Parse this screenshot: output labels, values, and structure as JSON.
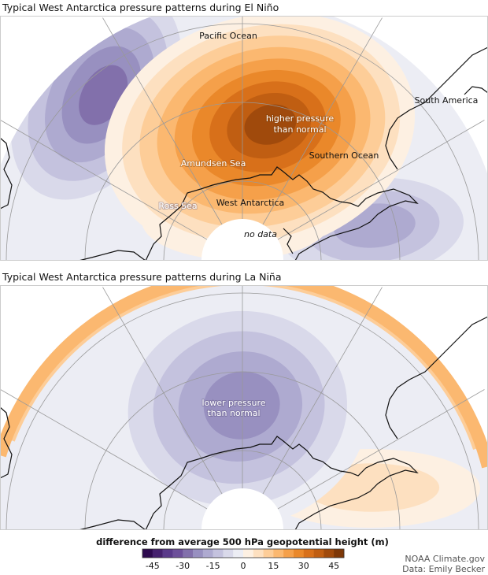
{
  "panels": [
    {
      "title": "Typical West Antarctica pressure patterns during El Niño",
      "labels": {
        "pacific": "Pacific Ocean",
        "south_america": "South America",
        "anomaly_line1": "higher pressure",
        "anomaly_line2": "than normal",
        "southern_ocean": "Southern Ocean",
        "amundsen": "Amundsen Sea",
        "west_antarctica": "West Antarctica",
        "ross": "Ross Sea",
        "no_data": "no data"
      }
    },
    {
      "title": "Typical West Antarctica pressure patterns during La Niña",
      "labels": {
        "anomaly_line1": "lower pressure",
        "anomaly_line2": "than normal"
      }
    }
  ],
  "legend": {
    "title": "difference from average 500 hPa geopotential height (m)",
    "range": [
      -50,
      50
    ],
    "step": 5,
    "ticks": [
      "-45",
      "-30",
      "-15",
      "0",
      "15",
      "30",
      "45"
    ],
    "colors": [
      "#2d0a4e",
      "#45216e",
      "#5a3a8a",
      "#6d509a",
      "#8270ab",
      "#9890c0",
      "#aeaad0",
      "#c4c2de",
      "#d9d9ea",
      "#ecedf4",
      "#fdf0e2",
      "#fde0c0",
      "#fdcd98",
      "#fbb870",
      "#f5a04a",
      "#ea882a",
      "#d8701a",
      "#c05e12",
      "#a04a0c",
      "#7e3808"
    ]
  },
  "credits": {
    "source": "NOAA Climate.gov",
    "data": "Data: Emily Becker"
  }
}
